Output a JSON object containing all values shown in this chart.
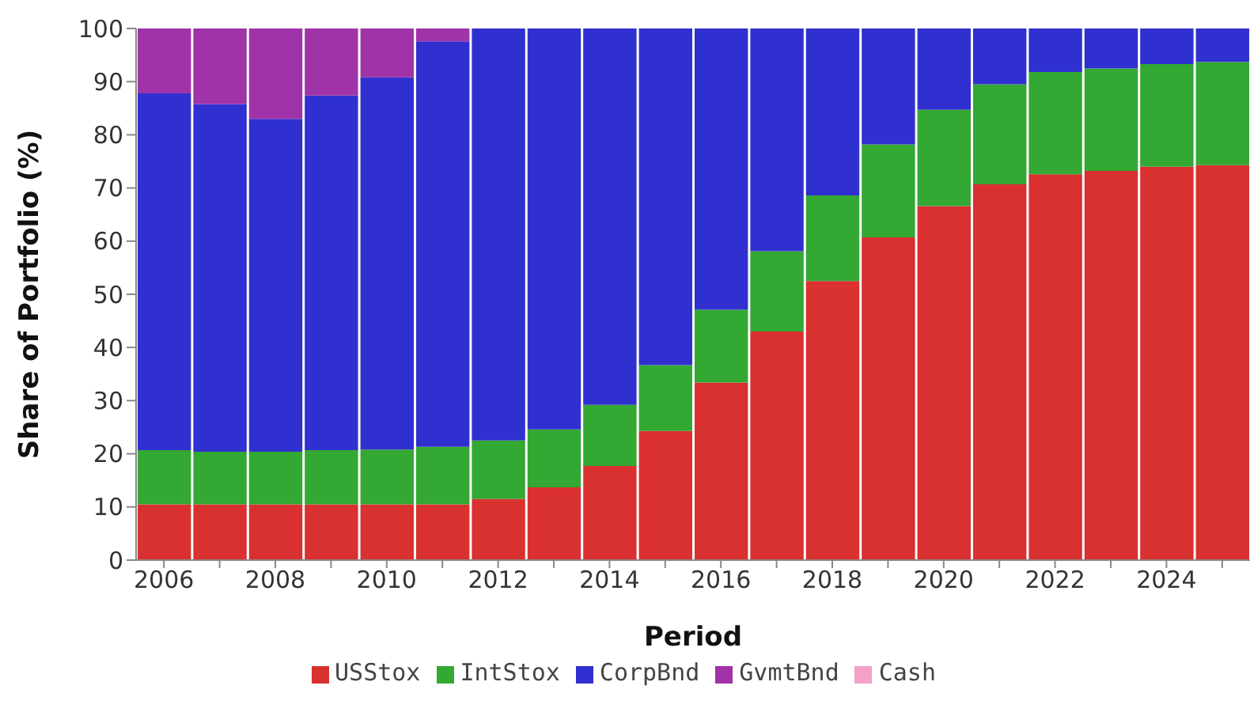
{
  "chart_data": {
    "type": "bar",
    "stacked": true,
    "xlabel": "Period",
    "ylabel": "Share of Portfolio (%)",
    "x": [
      2006,
      2007,
      2008,
      2009,
      2010,
      2011,
      2012,
      2013,
      2014,
      2015,
      2016,
      2017,
      2018,
      2019,
      2020,
      2021,
      2022,
      2023,
      2024,
      2025
    ],
    "xlim": [
      2005.5,
      2025.5
    ],
    "xticks": [
      2006,
      {
        "value": 2007,
        "label": null
      },
      2008,
      {
        "value": 2009,
        "label": null
      },
      2010,
      {
        "value": 2011,
        "label": null
      },
      2012,
      {
        "value": 2013,
        "label": null
      },
      2014,
      {
        "value": 2015,
        "label": null
      },
      2016,
      {
        "value": 2017,
        "label": null
      },
      2018,
      {
        "value": 2019,
        "label": null
      },
      2020,
      {
        "value": 2021,
        "label": null
      },
      2022,
      {
        "value": 2023,
        "label": null
      },
      2024,
      {
        "value": 2025,
        "label": null
      }
    ],
    "ylim": [
      0,
      100
    ],
    "yticks": [
      0,
      10,
      20,
      30,
      40,
      50,
      60,
      70,
      80,
      90,
      100
    ],
    "legend": "bottom",
    "series": [
      {
        "name": "USStox",
        "color": "#d93030",
        "values": [
          10.5,
          10.5,
          10.5,
          10.5,
          10.5,
          10.5,
          11.5,
          13.7,
          17.7,
          24.3,
          33.4,
          43,
          52.5,
          60.7,
          66.6,
          70.7,
          72.6,
          73.2,
          74,
          74.3
        ]
      },
      {
        "name": "IntStox",
        "color": "#33a833",
        "values": [
          10.2,
          9.9,
          9.9,
          10.2,
          10.3,
          10.8,
          11,
          10.9,
          11.5,
          12.4,
          13.7,
          15.1,
          16.1,
          17.5,
          18.1,
          18.8,
          19.2,
          19.3,
          19.3,
          19.4
        ]
      },
      {
        "name": "CorpBnd",
        "color": "#3030d0",
        "values": [
          67.1,
          65.4,
          62.6,
          66.7,
          70,
          76.3,
          77.5,
          75.4,
          70.8,
          63.3,
          52.9,
          41.9,
          31.4,
          21.8,
          15.3,
          10.5,
          8.2,
          7.5,
          6.7,
          6.3
        ]
      },
      {
        "name": "GvmtBnd",
        "color": "#a033a8",
        "values": [
          12.2,
          14.2,
          17,
          12.6,
          9.2,
          2.4,
          0,
          0,
          0,
          0,
          0,
          0,
          0,
          0,
          0,
          0,
          0,
          0,
          0,
          0
        ]
      },
      {
        "name": "Cash",
        "color": "#f4a0c8",
        "values": [
          0,
          0,
          0,
          0,
          0,
          0,
          0,
          0,
          0,
          0,
          0,
          0,
          0,
          0,
          0,
          0,
          0,
          0,
          0,
          0
        ]
      }
    ]
  }
}
